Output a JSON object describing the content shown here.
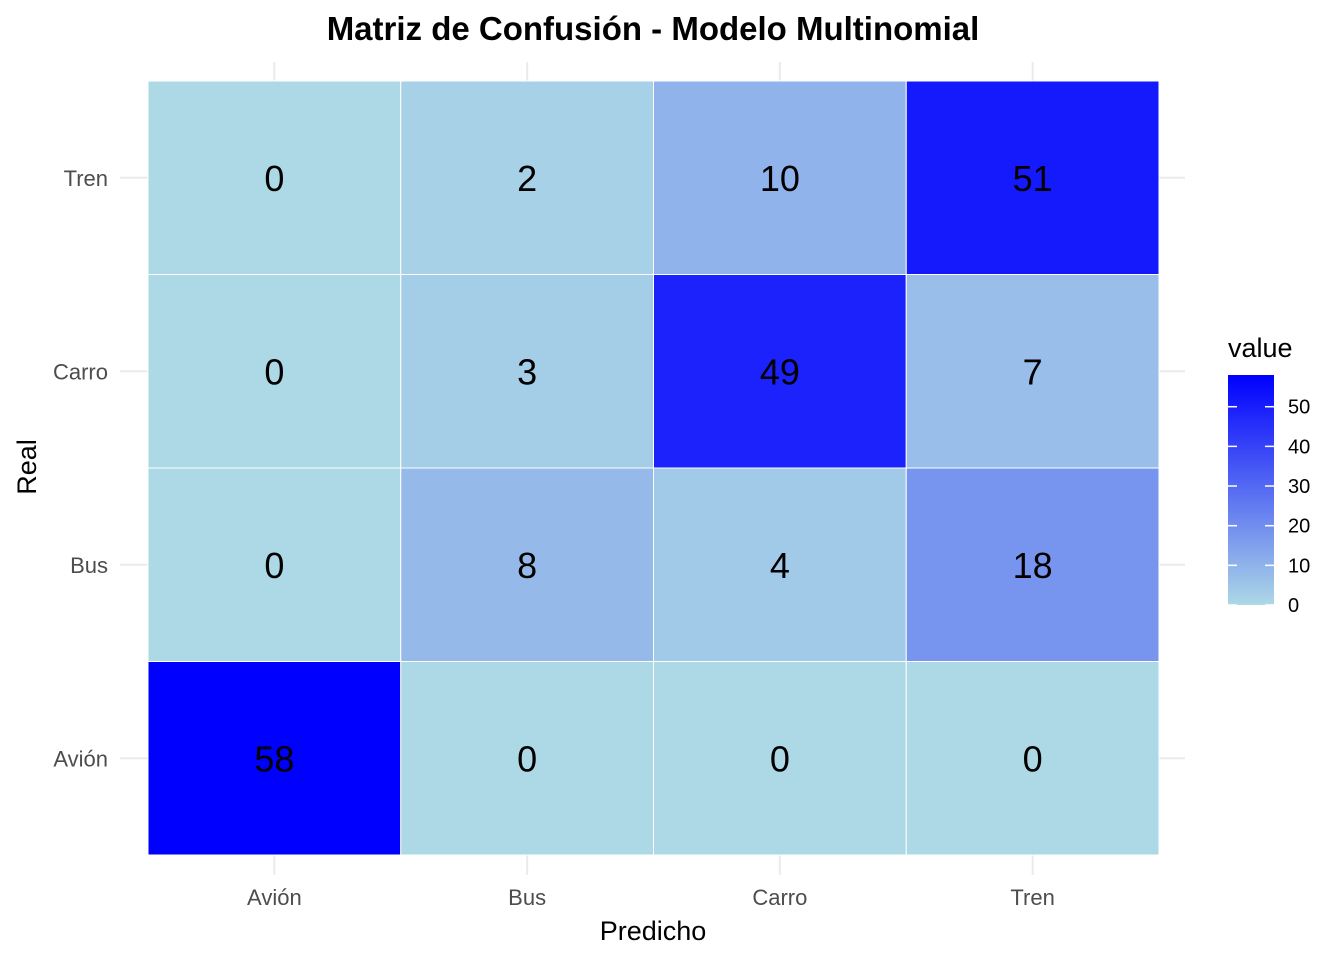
{
  "chart_data": {
    "type": "heatmap",
    "title": "Matriz de Confusión - Modelo Multinomial",
    "xlabel": "Predicho",
    "ylabel": "Real",
    "x_categories": [
      "Avión",
      "Bus",
      "Carro",
      "Tren"
    ],
    "y_categories": [
      "Avión",
      "Bus",
      "Carro",
      "Tren"
    ],
    "cells": [
      {
        "real": "Tren",
        "predicho": "Avión",
        "value": 0
      },
      {
        "real": "Tren",
        "predicho": "Bus",
        "value": 2
      },
      {
        "real": "Tren",
        "predicho": "Carro",
        "value": 10
      },
      {
        "real": "Tren",
        "predicho": "Tren",
        "value": 51
      },
      {
        "real": "Carro",
        "predicho": "Avión",
        "value": 0
      },
      {
        "real": "Carro",
        "predicho": "Bus",
        "value": 3
      },
      {
        "real": "Carro",
        "predicho": "Carro",
        "value": 49
      },
      {
        "real": "Carro",
        "predicho": "Tren",
        "value": 7
      },
      {
        "real": "Bus",
        "predicho": "Avión",
        "value": 0
      },
      {
        "real": "Bus",
        "predicho": "Bus",
        "value": 8
      },
      {
        "real": "Bus",
        "predicho": "Carro",
        "value": 4
      },
      {
        "real": "Bus",
        "predicho": "Tren",
        "value": 18
      },
      {
        "real": "Avión",
        "predicho": "Avión",
        "value": 58
      },
      {
        "real": "Avión",
        "predicho": "Bus",
        "value": 0
      },
      {
        "real": "Avión",
        "predicho": "Carro",
        "value": 0
      },
      {
        "real": "Avión",
        "predicho": "Tren",
        "value": 0
      }
    ],
    "legend": {
      "title": "value",
      "ticks": [
        0,
        10,
        20,
        30,
        40,
        50
      ],
      "range": [
        0,
        58
      ],
      "low_color": "#add8e6",
      "high_color": "#0000ff",
      "placement": "right"
    },
    "grid": true
  }
}
